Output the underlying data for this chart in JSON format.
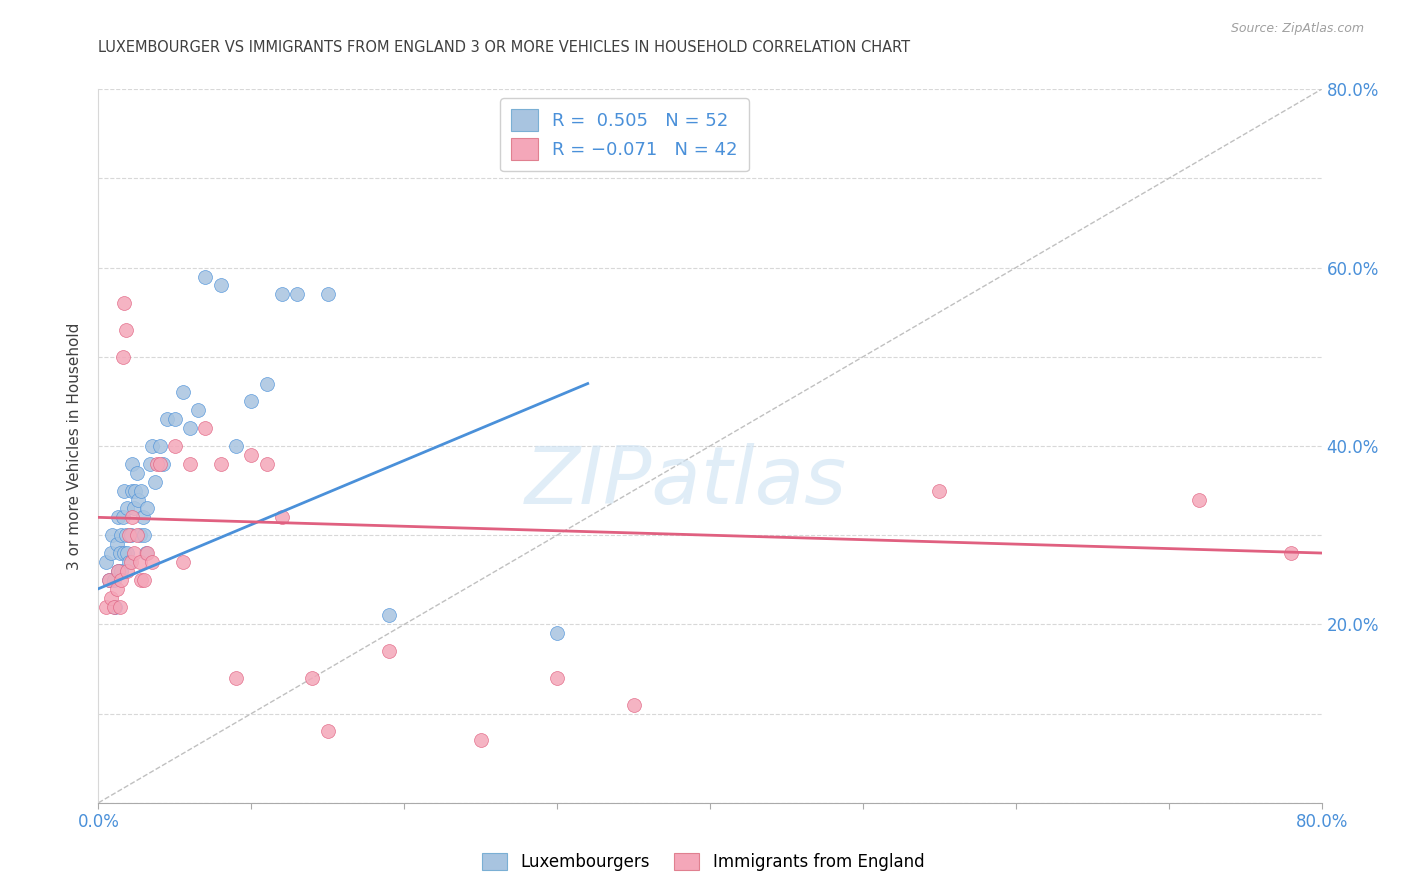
{
  "title": "LUXEMBOURGER VS IMMIGRANTS FROM ENGLAND 3 OR MORE VEHICLES IN HOUSEHOLD CORRELATION CHART",
  "source": "Source: ZipAtlas.com",
  "ylabel": "3 or more Vehicles in Household",
  "xmin": 0.0,
  "xmax": 0.8,
  "ymin": 0.0,
  "ymax": 0.8,
  "xtick_vals": [
    0.0,
    0.1,
    0.2,
    0.3,
    0.4,
    0.5,
    0.6,
    0.7,
    0.8
  ],
  "ytick_vals": [
    0.0,
    0.1,
    0.2,
    0.3,
    0.4,
    0.5,
    0.6,
    0.7,
    0.8
  ],
  "right_ytick_vals": [
    0.2,
    0.4,
    0.6,
    0.8
  ],
  "right_ytick_labels": [
    "20.0%",
    "40.0%",
    "60.0%",
    "80.0%"
  ],
  "blue_color": "#a8c4e0",
  "pink_color": "#f4a7b9",
  "blue_line_color": "#4a90d9",
  "pink_line_color": "#e06080",
  "diag_line_color": "#c0c0c0",
  "legend_label1": "Luxembourgers",
  "legend_label2": "Immigrants from England",
  "title_color": "#404040",
  "source_color": "#a0a0a0",
  "watermark": "ZIPatlas",
  "blue_scatter_x": [
    0.005,
    0.007,
    0.008,
    0.009,
    0.01,
    0.011,
    0.012,
    0.013,
    0.013,
    0.014,
    0.015,
    0.015,
    0.016,
    0.017,
    0.017,
    0.018,
    0.019,
    0.019,
    0.02,
    0.021,
    0.022,
    0.022,
    0.023,
    0.024,
    0.025,
    0.026,
    0.027,
    0.028,
    0.029,
    0.03,
    0.031,
    0.032,
    0.034,
    0.035,
    0.037,
    0.04,
    0.042,
    0.045,
    0.05,
    0.055,
    0.06,
    0.065,
    0.07,
    0.08,
    0.09,
    0.1,
    0.11,
    0.12,
    0.13,
    0.15,
    0.19,
    0.3
  ],
  "blue_scatter_y": [
    0.27,
    0.25,
    0.28,
    0.3,
    0.25,
    0.22,
    0.29,
    0.32,
    0.26,
    0.28,
    0.3,
    0.26,
    0.32,
    0.28,
    0.35,
    0.3,
    0.33,
    0.28,
    0.27,
    0.3,
    0.35,
    0.38,
    0.33,
    0.35,
    0.37,
    0.34,
    0.3,
    0.35,
    0.32,
    0.3,
    0.28,
    0.33,
    0.38,
    0.4,
    0.36,
    0.4,
    0.38,
    0.43,
    0.43,
    0.46,
    0.42,
    0.44,
    0.59,
    0.58,
    0.4,
    0.45,
    0.47,
    0.57,
    0.57,
    0.57,
    0.21,
    0.19
  ],
  "pink_scatter_x": [
    0.005,
    0.007,
    0.008,
    0.01,
    0.012,
    0.013,
    0.014,
    0.015,
    0.016,
    0.017,
    0.018,
    0.019,
    0.02,
    0.021,
    0.022,
    0.023,
    0.025,
    0.027,
    0.028,
    0.03,
    0.032,
    0.035,
    0.038,
    0.04,
    0.05,
    0.055,
    0.06,
    0.07,
    0.08,
    0.09,
    0.1,
    0.11,
    0.12,
    0.14,
    0.15,
    0.19,
    0.25,
    0.3,
    0.35,
    0.55,
    0.72,
    0.78
  ],
  "pink_scatter_y": [
    0.22,
    0.25,
    0.23,
    0.22,
    0.24,
    0.26,
    0.22,
    0.25,
    0.5,
    0.56,
    0.53,
    0.26,
    0.3,
    0.27,
    0.32,
    0.28,
    0.3,
    0.27,
    0.25,
    0.25,
    0.28,
    0.27,
    0.38,
    0.38,
    0.4,
    0.27,
    0.38,
    0.42,
    0.38,
    0.14,
    0.39,
    0.38,
    0.32,
    0.14,
    0.08,
    0.17,
    0.07,
    0.14,
    0.11,
    0.35,
    0.34,
    0.28
  ],
  "blue_line_x": [
    0.0,
    0.32
  ],
  "blue_line_y": [
    0.24,
    0.47
  ],
  "pink_line_x": [
    0.0,
    0.8
  ],
  "pink_line_y": [
    0.32,
    0.28
  ],
  "diag_line_x": [
    0.0,
    0.8
  ],
  "diag_line_y": [
    0.0,
    0.8
  ],
  "grid_color": "#d8d8d8",
  "background_color": "#ffffff",
  "legend_value_color": "#4a90d9"
}
